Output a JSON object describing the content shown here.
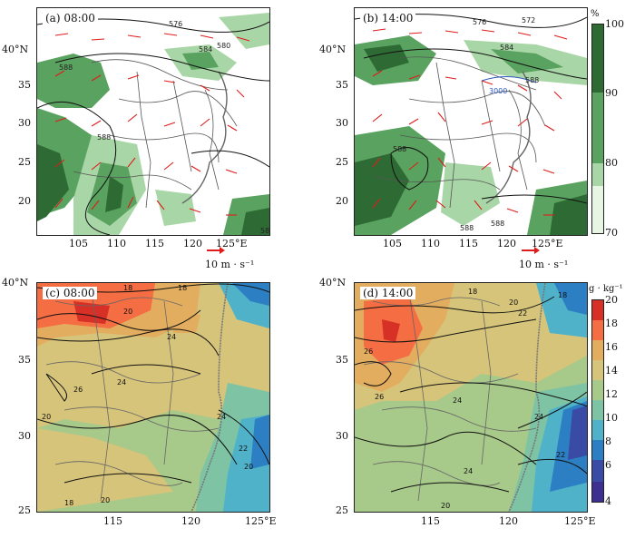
{
  "panels": {
    "a": {
      "label": "(a) 08:00",
      "contours": [
        "576",
        "580",
        "584",
        "588",
        "588",
        "588"
      ]
    },
    "b": {
      "label": "(b) 14:00",
      "contours": [
        "576",
        "572",
        "584",
        "588",
        "3000",
        "588",
        "588",
        "588"
      ]
    },
    "c": {
      "label": "(c) 08:00",
      "contours": [
        "18",
        "18",
        "20",
        "24",
        "26",
        "24",
        "24",
        "22",
        "20",
        "18",
        "20",
        "20"
      ]
    },
    "d": {
      "label": "(d) 14:00",
      "contours": [
        "18",
        "20",
        "18",
        "22",
        "26",
        "26",
        "24",
        "24",
        "22",
        "24",
        "20"
      ]
    }
  },
  "top_axes": {
    "y_ticks": [
      "40°N",
      "35",
      "30",
      "25",
      "20"
    ],
    "x_ticks": [
      "105",
      "110",
      "115",
      "120",
      "125°E"
    ]
  },
  "bottom_axes": {
    "y_ticks": [
      "40°N",
      "35",
      "30",
      "25"
    ],
    "x_ticks": [
      "115",
      "120",
      "125°E"
    ]
  },
  "reference_vector": {
    "label": "10 m · s⁻¹"
  },
  "humidity_colorbar": {
    "unit": "%",
    "ticks": [
      "100",
      "90",
      "80",
      "70"
    ],
    "colors": [
      "#2e6b34",
      "#5aa25f",
      "#a9d6a6",
      "#e8f5e5"
    ]
  },
  "q_colorbar": {
    "unit": "g · kg⁻¹",
    "ticks": [
      "20",
      "18",
      "16",
      "14",
      "12",
      "10",
      "8",
      "6",
      "4"
    ],
    "colors": [
      "#d73027",
      "#f46d43",
      "#e3ad5f",
      "#d6c47a",
      "#a7c98a",
      "#7ec3a4",
      "#4fb2c9",
      "#2c7fc2",
      "#3a4ba6",
      "#3c2f8f"
    ]
  },
  "chart_data": {
    "type": "map",
    "panels": [
      "(a) 08:00",
      "(b) 14:00",
      "(c) 08:00",
      "(d) 14:00"
    ],
    "top_extent": {
      "lon": [
        100,
        130
      ],
      "lat": [
        15,
        43
      ]
    },
    "bottom_extent": {
      "lon": [
        110,
        125
      ],
      "lat": [
        25,
        40
      ]
    },
    "geopotential_contours": [
      572,
      576,
      580,
      584,
      588,
      3000
    ],
    "q_contours": [
      18,
      20,
      22,
      24,
      26
    ]
  }
}
